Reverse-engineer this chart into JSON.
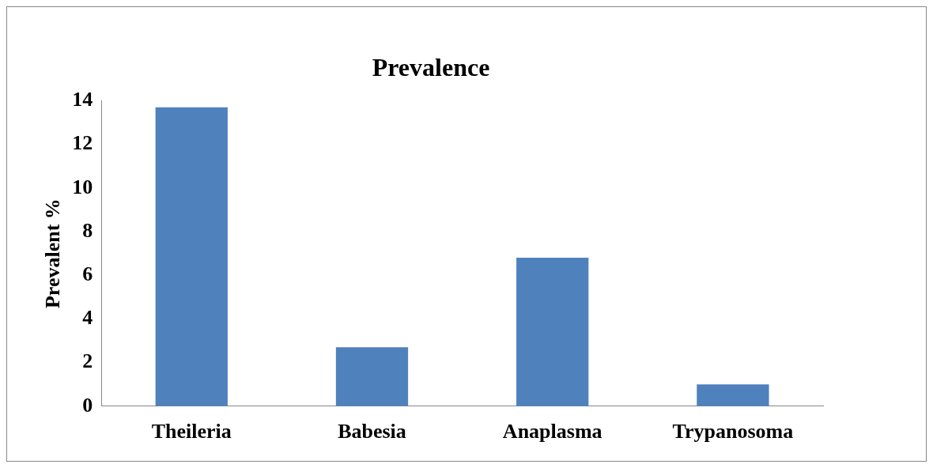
{
  "chart_data": {
    "type": "bar",
    "title": "Prevalence",
    "ylabel": "Prevalent %",
    "categories": [
      "Theileria",
      "Babesia",
      "Anaplasma",
      "Trypanosoma"
    ],
    "values": [
      13.7,
      2.7,
      6.8,
      1.0
    ],
    "color": "#4f81bd",
    "ylim": [
      0,
      14
    ],
    "yticks": [
      0,
      2,
      4,
      6,
      8,
      10,
      12,
      14
    ],
    "grid": false,
    "legend": false
  }
}
